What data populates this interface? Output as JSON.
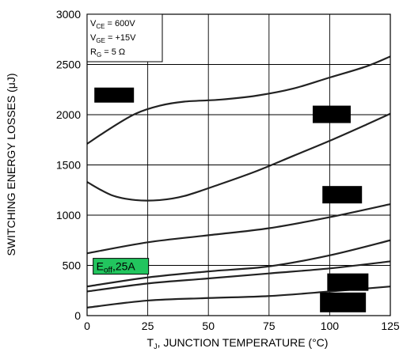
{
  "chart_data": {
    "type": "line",
    "title": "",
    "xlabel": "T_J, JUNCTION TEMPERATURE (°C)",
    "xlabel_main": "T",
    "xlabel_sub": "J",
    "xlabel_rest": ", JUNCTION TEMPERATURE (°C)",
    "ylabel": "SWITCHING ENERGY LOSSES (μJ)",
    "xlim": [
      0,
      125
    ],
    "ylim": [
      0,
      3000
    ],
    "x_ticks": [
      "0",
      "25",
      "50",
      "75",
      "100",
      "125"
    ],
    "y_ticks": [
      "0",
      "500",
      "1000",
      "1500",
      "2000",
      "2500",
      "3000"
    ],
    "grid": true,
    "conditions": [
      {
        "main": "V",
        "sub": "CE",
        "rest": " =  600V"
      },
      {
        "main": "V",
        "sub": "GE",
        "rest": " =  +15V"
      },
      {
        "main": "R",
        "sub": "G",
        "rest": " = 5 Ω"
      }
    ],
    "series": [
      {
        "x": [
          0,
          10,
          20,
          30,
          40,
          55,
          70,
          85,
          100,
          115,
          125
        ],
        "y": [
          1710,
          1870,
          2010,
          2090,
          2130,
          2150,
          2190,
          2260,
          2370,
          2480,
          2580
        ]
      },
      {
        "x": [
          0,
          10,
          20,
          30,
          40,
          55,
          70,
          85,
          100,
          115,
          125
        ],
        "y": [
          1330,
          1200,
          1150,
          1150,
          1190,
          1310,
          1440,
          1590,
          1740,
          1900,
          2010
        ]
      },
      {
        "x": [
          0,
          25,
          50,
          75,
          100,
          125
        ],
        "y": [
          620,
          730,
          800,
          870,
          980,
          1110
        ]
      },
      {
        "x": [
          0,
          25,
          50,
          75,
          100,
          125
        ],
        "y": [
          290,
          380,
          440,
          490,
          600,
          750
        ]
      },
      {
        "name": "E_off, 25A",
        "label_main": "E",
        "label_sub": "off",
        "label_rest": ",25A",
        "x": [
          0,
          25,
          50,
          75,
          100,
          125
        ],
        "y": [
          240,
          320,
          370,
          420,
          470,
          540
        ]
      },
      {
        "x": [
          0,
          25,
          50,
          75,
          100,
          125
        ],
        "y": [
          80,
          150,
          175,
          195,
          240,
          290
        ]
      }
    ],
    "colors": {
      "line": "#222222",
      "grid": "#000000",
      "label_box": "#22c55e",
      "redaction": "#000000"
    }
  }
}
